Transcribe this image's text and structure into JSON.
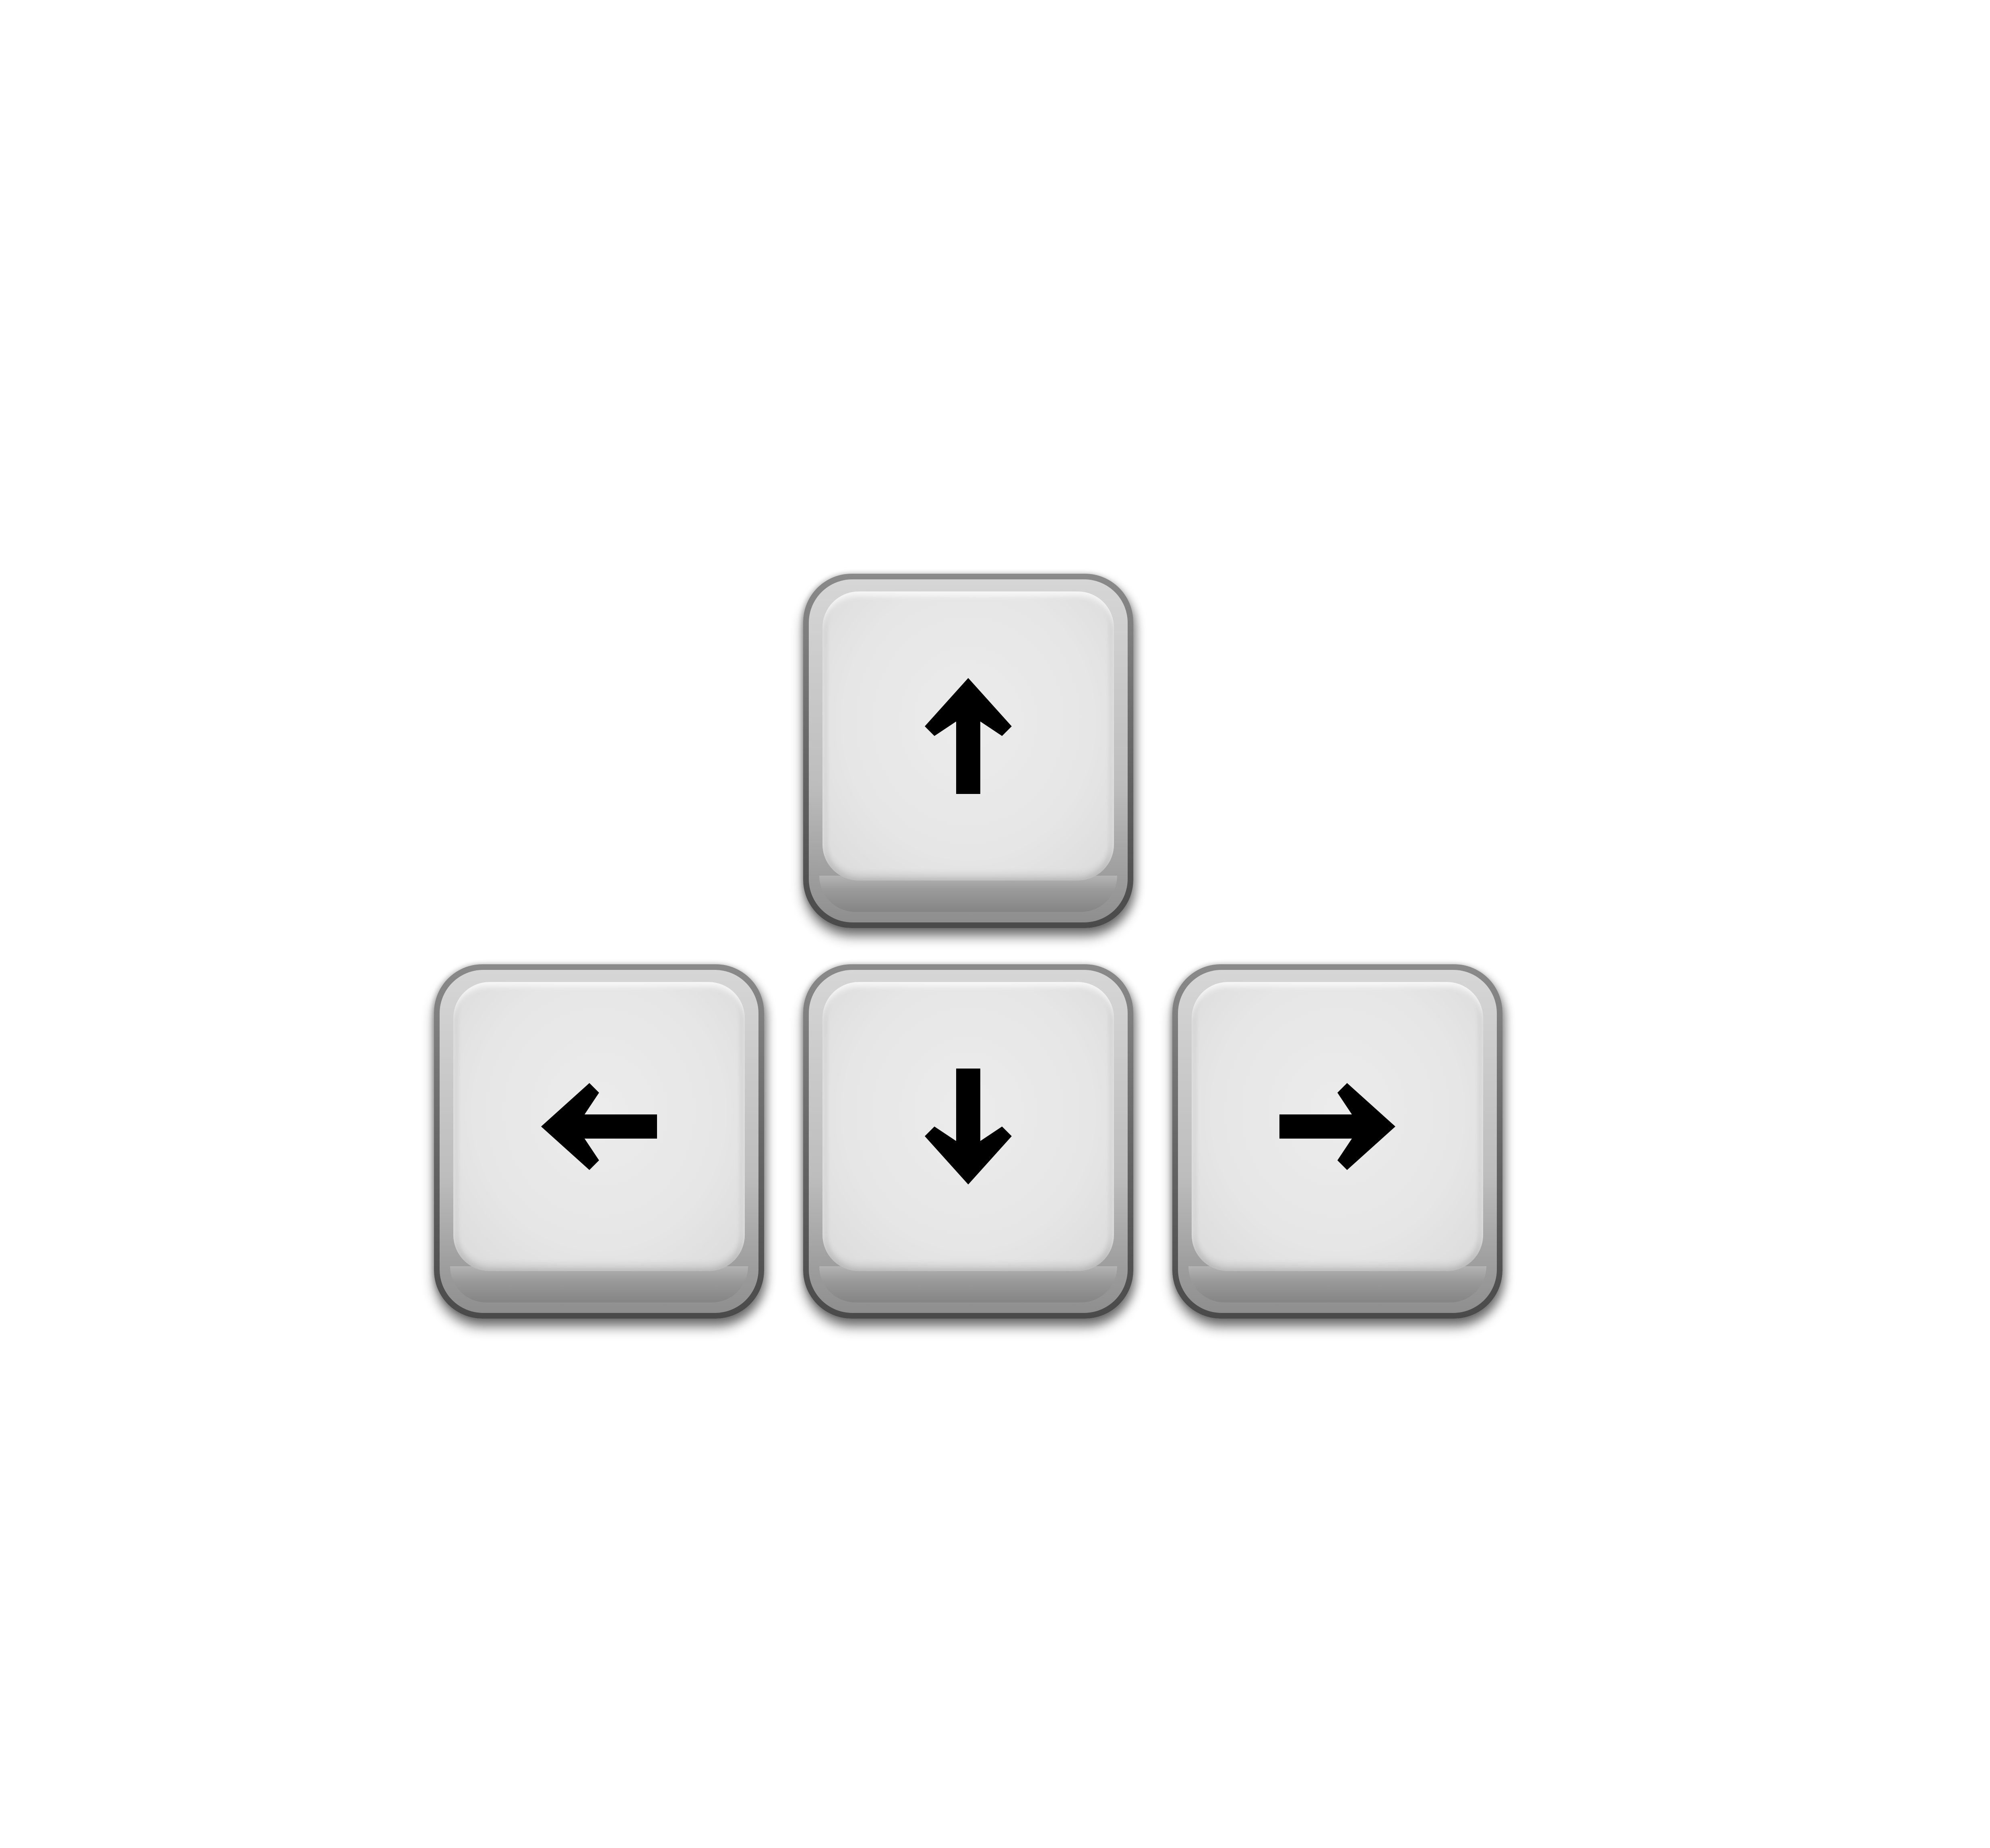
{
  "keys": [
    {
      "id": "up",
      "icon": "arrow-up-icon"
    },
    {
      "id": "left",
      "icon": "arrow-left-icon"
    },
    {
      "id": "down",
      "icon": "arrow-down-icon"
    },
    {
      "id": "right",
      "icon": "arrow-right-icon"
    }
  ],
  "colors": {
    "background": "#ffffff",
    "key_face": "#e6e6e6",
    "key_border": "#6a6a6a",
    "arrow": "#000000"
  }
}
